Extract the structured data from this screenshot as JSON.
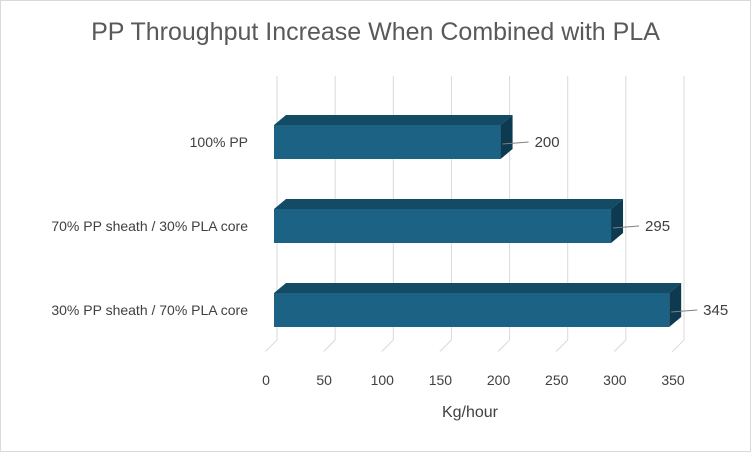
{
  "chart_data": {
    "type": "bar",
    "orientation": "horizontal",
    "style": "3d",
    "title": "PP Throughput Increase When Combined with PLA",
    "categories": [
      "100% PP",
      "70% PP sheath / 30% PLA core",
      "30% PP sheath / 70% PLA core"
    ],
    "values": [
      200,
      295,
      345
    ],
    "data_labels": [
      "200",
      "295",
      "345"
    ],
    "xlabel": "Kg/hour",
    "ylabel": "",
    "xlim": [
      0,
      350
    ],
    "x_ticks": [
      "0",
      "50",
      "100",
      "150",
      "200",
      "250",
      "300",
      "350"
    ],
    "grid": true,
    "legend": "none",
    "bar_color": "#1b6284"
  }
}
